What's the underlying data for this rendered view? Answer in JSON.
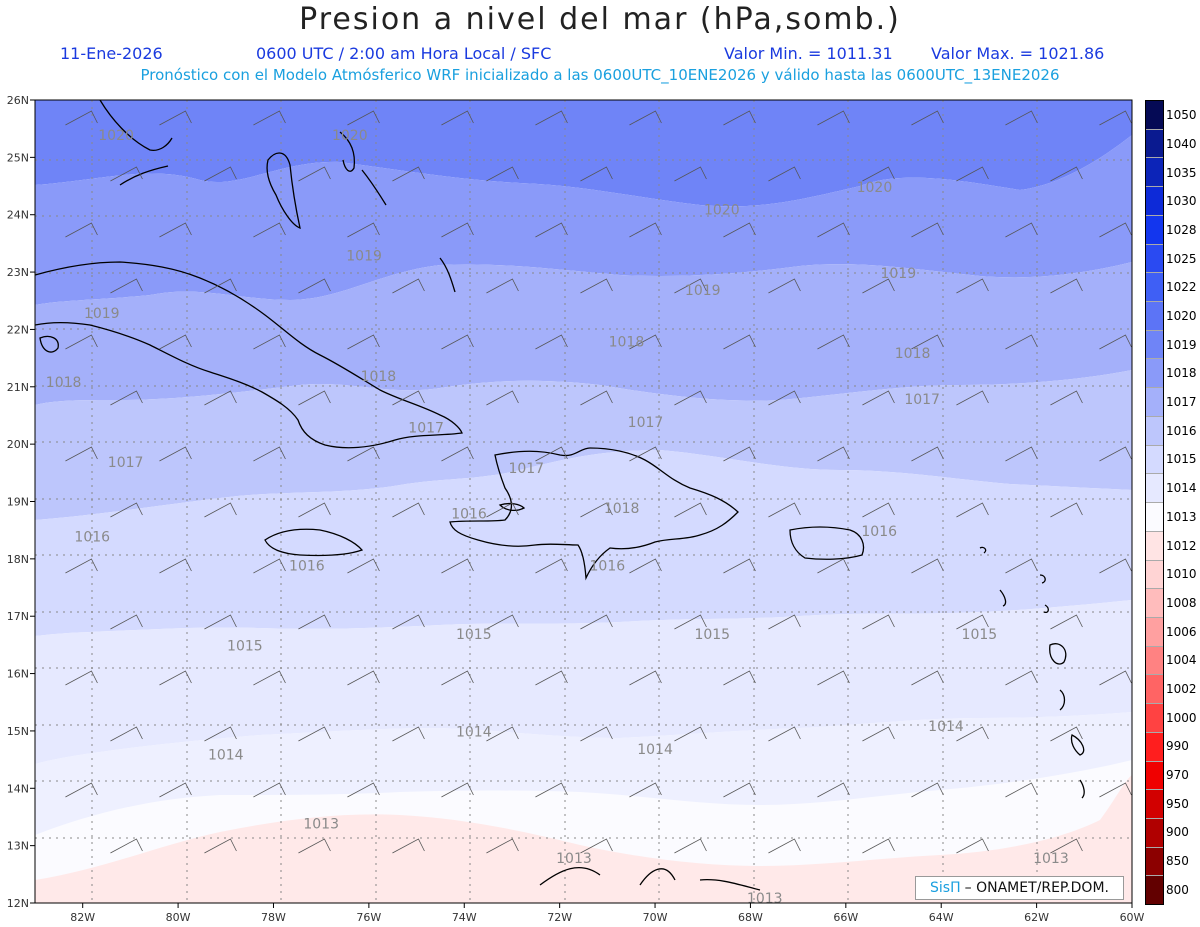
{
  "header": {
    "title": "Presion a nivel del mar (hPa,somb.)",
    "date": "11-Ene-2026",
    "time": "0600 UTC / 2:00 am Hora Local / SFC",
    "min_label": "Valor Min. = 1011.31",
    "max_label": "Valor Max. = 1021.86",
    "forecast_info": "Pronóstico con el Modelo Atmósferico WRF inicializado a las 0600UTC_10ENE2026 y válido hasta las  0600UTC_13ENE2026"
  },
  "map": {
    "lat_labels": [
      "26N",
      "25N",
      "24N",
      "23N",
      "22N",
      "21N",
      "20N",
      "19N",
      "18N",
      "17N",
      "16N",
      "15N",
      "14N",
      "13N",
      "12N"
    ],
    "lon_labels": [
      "82W",
      "80W",
      "78W",
      "76W",
      "74W",
      "72W",
      "70W",
      "68W",
      "66W",
      "64W",
      "62W",
      "60W"
    ],
    "contour_labels": [
      {
        "text": "1020",
        "lon": -81.3,
        "lat": 25.3
      },
      {
        "text": "1020",
        "lon": -76.4,
        "lat": 25.3
      },
      {
        "text": "1020",
        "lon": -65.4,
        "lat": 24.4
      },
      {
        "text": "1020",
        "lon": -68.6,
        "lat": 24.0
      },
      {
        "text": "1019",
        "lon": -76.1,
        "lat": 23.2
      },
      {
        "text": "1019",
        "lon": -69.0,
        "lat": 22.6
      },
      {
        "text": "1019",
        "lon": -64.9,
        "lat": 22.9
      },
      {
        "text": "1019",
        "lon": -81.6,
        "lat": 22.2
      },
      {
        "text": "1018",
        "lon": -70.6,
        "lat": 21.7
      },
      {
        "text": "1018",
        "lon": -82.4,
        "lat": 21.0
      },
      {
        "text": "1018",
        "lon": -75.8,
        "lat": 21.1
      },
      {
        "text": "1018",
        "lon": -64.6,
        "lat": 21.5
      },
      {
        "text": "1017",
        "lon": -64.4,
        "lat": 20.7
      },
      {
        "text": "1017",
        "lon": -70.2,
        "lat": 20.3
      },
      {
        "text": "1017",
        "lon": -74.8,
        "lat": 20.2
      },
      {
        "text": "1017",
        "lon": -81.1,
        "lat": 19.6
      },
      {
        "text": "1017",
        "lon": -72.7,
        "lat": 19.5
      },
      {
        "text": "1018",
        "lon": -70.7,
        "lat": 18.8
      },
      {
        "text": "1016",
        "lon": -73.9,
        "lat": 18.7
      },
      {
        "text": "1016",
        "lon": -81.8,
        "lat": 18.3
      },
      {
        "text": "1016",
        "lon": -77.3,
        "lat": 17.8
      },
      {
        "text": "1016",
        "lon": -71.0,
        "lat": 17.8
      },
      {
        "text": "1016",
        "lon": -65.3,
        "lat": 18.4
      },
      {
        "text": "1015",
        "lon": -78.6,
        "lat": 16.4
      },
      {
        "text": "1015",
        "lon": -73.8,
        "lat": 16.6
      },
      {
        "text": "1015",
        "lon": -68.8,
        "lat": 16.6
      },
      {
        "text": "1015",
        "lon": -63.2,
        "lat": 16.6
      },
      {
        "text": "1014",
        "lon": -73.8,
        "lat": 14.9
      },
      {
        "text": "1014",
        "lon": -79.0,
        "lat": 14.5
      },
      {
        "text": "1014",
        "lon": -70.0,
        "lat": 14.6
      },
      {
        "text": "1014",
        "lon": -63.9,
        "lat": 15.0
      },
      {
        "text": "1013",
        "lon": -77.0,
        "lat": 13.3
      },
      {
        "text": "1013",
        "lon": -71.7,
        "lat": 12.7
      },
      {
        "text": "1013",
        "lon": -61.7,
        "lat": 12.7
      },
      {
        "text": "1013",
        "lon": -67.7,
        "lat": 12.0
      }
    ]
  },
  "colorbar": {
    "levels": [
      "800",
      "850",
      "900",
      "950",
      "970",
      "990",
      "1000",
      "1002",
      "1004",
      "1006",
      "1008",
      "1010",
      "1012",
      "1013",
      "1014",
      "1015",
      "1016",
      "1017",
      "1018",
      "1019",
      "1020",
      "1022",
      "1025",
      "1028",
      "1030",
      "1035",
      "1040",
      "1050"
    ],
    "colors_top_to_bottom": [
      "#050a55",
      "#0a1a90",
      "#0c24b8",
      "#0d2ad8",
      "#1336ee",
      "#2a4af2",
      "#3f5ff5",
      "#5c74f6",
      "#6f84f7",
      "#8a9af9",
      "#a4b0fa",
      "#bdc6fc",
      "#d4daff",
      "#e6e9ff",
      "#fbfbff",
      "#ffe4e4",
      "#ffd4d4",
      "#ffbcbc",
      "#ffa0a0",
      "#ff8282",
      "#ff6464",
      "#ff4242",
      "#ff1e1e",
      "#f00000",
      "#d20000",
      "#b00000",
      "#8c0000",
      "#620000"
    ]
  },
  "credit": {
    "brand": "SisΠ",
    "text": "– ONAMET/REP.DOM."
  }
}
